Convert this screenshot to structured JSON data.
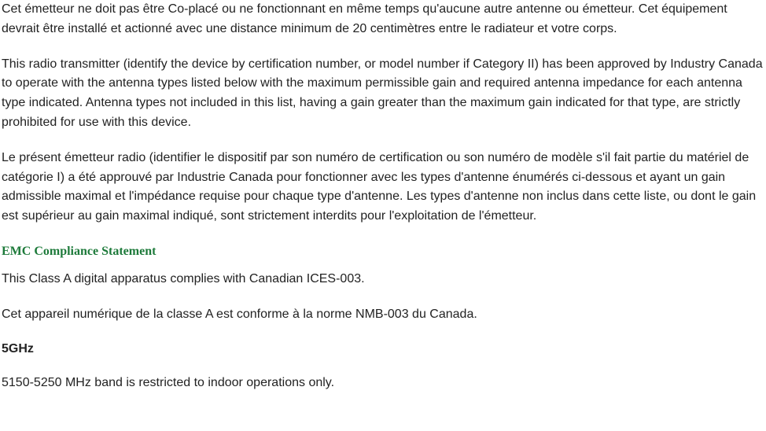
{
  "doc": {
    "para1": "Cet émetteur ne doit pas être Co-placé ou ne fonctionnant en même temps qu'aucune autre antenne ou émetteur. Cet équipement devrait être installé et actionné avec une distance minimum de 20 centimètres entre le radiateur et votre corps.",
    "para2": "This radio transmitter (identify the device by certification number, or model number if Category II) has been approved by Industry Canada to operate with the antenna types listed below with the maximum permissible gain and required antenna impedance for each antenna type indicated. Antenna types not included in this list, having a gain greater than the maximum gain indicated for that type, are strictly prohibited for use with this device.",
    "para3": "Le présent émetteur radio (identifier le dispositif par son numéro de certification ou son numéro de modèle s'il fait partie du matériel de catégorie I) a été approuvé par Industrie Canada pour fonctionner avec les types d'antenne énumérés ci-dessous et ayant un gain admissible maximal et l'impédance requise pour chaque type d'antenne. Les types d'antenne non inclus dans cette liste, ou dont le gain est supérieur au gain maximal indiqué, sont strictement interdits pour l'exploitation de l'émetteur.",
    "heading_emc": "EMC Compliance Statement",
    "para4": "This Class A digital apparatus complies with Canadian ICES-003.",
    "para5": "Cet appareil numérique de la classe A est conforme à la norme NMB-003 du Canada.",
    "heading_5ghz": "5GHz",
    "para6": "5150-5250 MHz band is restricted to indoor operations only."
  },
  "style": {
    "body_text_color": "#222222",
    "heading_green_color": "#1d7a3a",
    "background_color": "#ffffff",
    "body_font_family": "Trebuchet MS",
    "heading_green_font_family": "Georgia",
    "body_font_size_pt": 12,
    "heading_font_size_pt": 12,
    "line_height": 1.55
  }
}
